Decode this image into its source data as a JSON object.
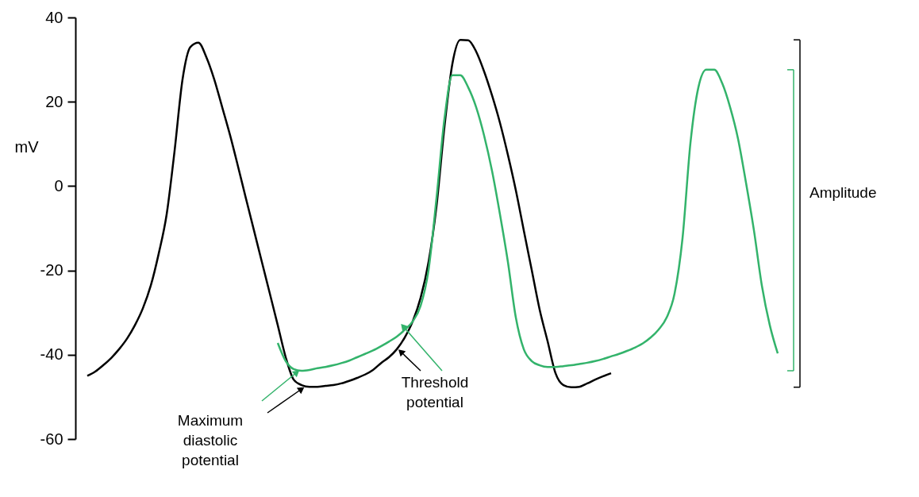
{
  "chart_data": {
    "type": "line",
    "ylabel": "mV",
    "categories": [
      null,
      null,
      null,
      null,
      null,
      null,
      null,
      null,
      null,
      null,
      null,
      null,
      null,
      null,
      null,
      null,
      null,
      null,
      null,
      null,
      null,
      null,
      null,
      null,
      null,
      null,
      null,
      null,
      null,
      null,
      null,
      null,
      null,
      null,
      null,
      null,
      null,
      null,
      null,
      null,
      null,
      null,
      null,
      null,
      null,
      null,
      null,
      null,
      null,
      null,
      null,
      null,
      null,
      null,
      null,
      null,
      null,
      null,
      null,
      null,
      null,
      null,
      null,
      null,
      null,
      null,
      null,
      null,
      null,
      null,
      null,
      null,
      null,
      null,
      null,
      null,
      null,
      null,
      null,
      null,
      null,
      null,
      null,
      null,
      null,
      null,
      null,
      null
    ],
    "ylim": [
      -60,
      40
    ],
    "yticks": [
      -60,
      -40,
      -20,
      0,
      20,
      40
    ],
    "grid": false,
    "marker": "none",
    "line_style": "solid",
    "series": [
      {
        "color": "#000000",
        "values": [
          -45,
          -44,
          -42.5,
          -40.8,
          -38.7,
          -36.2,
          -33,
          -29,
          -23.6,
          -16,
          -6.7,
          8.4,
          25.3,
          33,
          34,
          30.6,
          25.3,
          18.7,
          12,
          4.6,
          -3,
          -10.5,
          -18,
          -25.5,
          -33,
          -40.6,
          -45.9,
          -47.2,
          -47.6,
          -47.6,
          -47.4,
          -47.2,
          -46.8,
          -46.2,
          -45.5,
          -44.7,
          -43.6,
          -42,
          -40.6,
          -38.7,
          -35.9,
          -32.1,
          -26.5,
          -18,
          -4.8,
          14,
          29,
          34.7,
          34.6,
          31.9,
          27.2,
          21.5,
          15,
          7.4,
          -1,
          -10.5,
          -19.9,
          -29.3,
          -36.8,
          -44.4,
          -47.2,
          -47.7,
          -47.6,
          -46.8,
          -45.9,
          -45.1,
          -44.4,
          null,
          null,
          null,
          null,
          null,
          null,
          null,
          null,
          null,
          null,
          null,
          null,
          null,
          null,
          null,
          null,
          null,
          null,
          null,
          null,
          null
        ]
      },
      {
        "color": "#33b36b",
        "values": [
          null,
          null,
          null,
          null,
          null,
          null,
          null,
          null,
          null,
          null,
          null,
          null,
          null,
          null,
          null,
          null,
          null,
          null,
          null,
          null,
          null,
          null,
          null,
          null,
          -37.2,
          -41.5,
          -43.4,
          -43.8,
          -43.6,
          -43.2,
          -42.9,
          -42.5,
          -42,
          -41.4,
          -40.6,
          -39.8,
          -39,
          -38,
          -36.9,
          -35.7,
          -34.1,
          -32.1,
          -28.4,
          -19.9,
          -2.9,
          15.9,
          26.3,
          26.3,
          23.4,
          18.7,
          12,
          3.6,
          -6.7,
          -18,
          -31.2,
          -38.7,
          -41.5,
          -42.5,
          -42.9,
          -42.9,
          -42.7,
          -42.5,
          -42.2,
          -41.9,
          -41.5,
          -41,
          -40.4,
          -39.8,
          -39.1,
          -38.3,
          -37.3,
          -35.9,
          -34,
          -31.2,
          -25.5,
          -12.4,
          10.2,
          23.4,
          27.6,
          27.6,
          24.4,
          18.7,
          11.2,
          0.8,
          -10.5,
          -23.6,
          -33,
          -39.7
        ]
      }
    ],
    "annotations": [
      "Maximum diastolic potential",
      "Threshold potential",
      "Amplitude"
    ]
  }
}
